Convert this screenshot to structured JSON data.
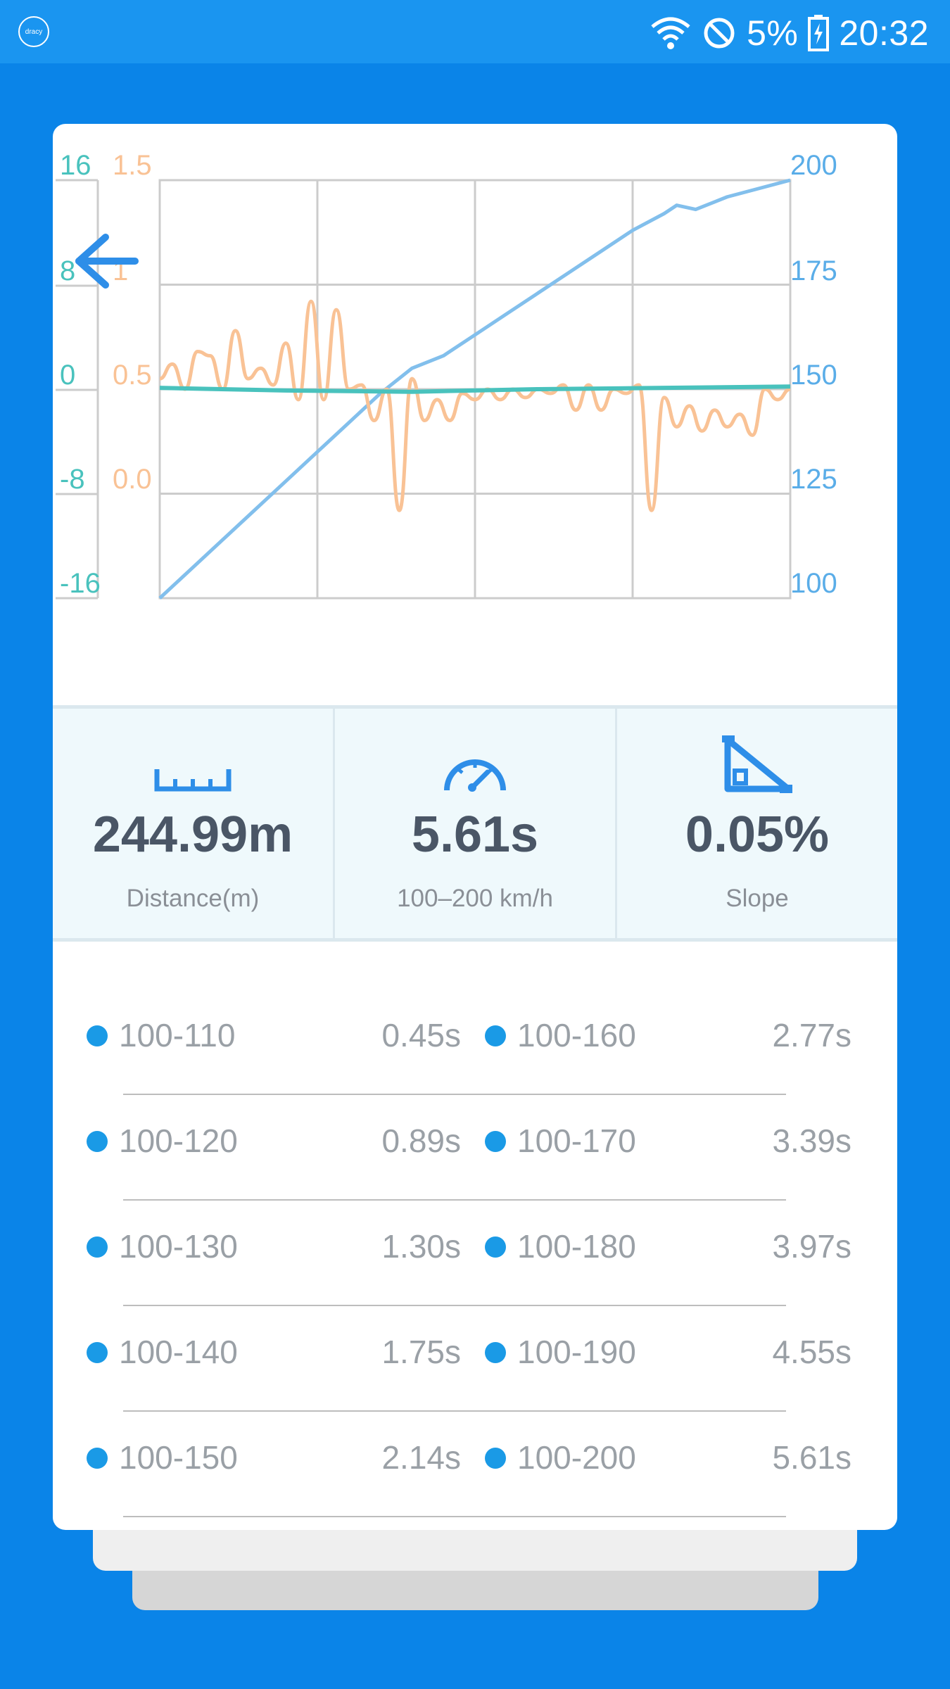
{
  "status_bar": {
    "logo_text": "dracy",
    "battery": "5%",
    "time": "20:32",
    "icons": [
      "wifi-icon",
      "do-not-disturb-icon",
      "battery-icon"
    ]
  },
  "chart": {
    "left_axis_slope_ticks": [
      "16",
      "8",
      "0",
      "-8",
      "-16"
    ],
    "left_axis_accel_ticks": [
      "1.5",
      "1",
      "0.5",
      "0.0"
    ],
    "right_axis_speed_ticks": [
      "200",
      "175",
      "150",
      "125",
      "100"
    ],
    "colors": {
      "speed": "#82bfec",
      "accel": "#f9c295",
      "slope": "#49c2bd",
      "grid": "#cccccc"
    }
  },
  "chart_data": {
    "type": "line",
    "series": [
      {
        "axis": "right",
        "color": "#82bfec",
        "x": [
          0.0,
          0.05,
          0.1,
          0.15,
          0.2,
          0.25,
          0.3,
          0.35,
          0.4,
          0.45,
          0.5,
          0.55,
          0.6,
          0.65,
          0.7,
          0.75,
          0.8,
          0.82,
          0.85,
          0.9,
          0.95,
          1.0
        ],
        "values": [
          100,
          107,
          114,
          121,
          128,
          135,
          142,
          149,
          155,
          158,
          163,
          168,
          173,
          178,
          183,
          188,
          192,
          194,
          193,
          196,
          198,
          200
        ]
      },
      {
        "axis": "accel",
        "color": "#f9c295",
        "x": [
          0.0,
          0.02,
          0.04,
          0.06,
          0.08,
          0.1,
          0.12,
          0.14,
          0.16,
          0.18,
          0.2,
          0.22,
          0.24,
          0.26,
          0.28,
          0.3,
          0.32,
          0.34,
          0.36,
          0.38,
          0.4,
          0.42,
          0.44,
          0.46,
          0.48,
          0.5,
          0.52,
          0.54,
          0.56,
          0.58,
          0.6,
          0.62,
          0.64,
          0.66,
          0.68,
          0.7,
          0.72,
          0.74,
          0.76,
          0.78,
          0.8,
          0.82,
          0.84,
          0.86,
          0.88,
          0.9,
          0.92,
          0.94,
          0.96,
          0.98,
          1.0
        ],
        "values": [
          0.55,
          0.62,
          0.5,
          0.68,
          0.66,
          0.5,
          0.78,
          0.55,
          0.6,
          0.52,
          0.72,
          0.45,
          0.92,
          0.45,
          0.88,
          0.5,
          0.52,
          0.35,
          0.5,
          -0.08,
          0.55,
          0.35,
          0.45,
          0.35,
          0.48,
          0.45,
          0.5,
          0.45,
          0.5,
          0.46,
          0.5,
          0.48,
          0.52,
          0.4,
          0.52,
          0.4,
          0.5,
          0.48,
          0.52,
          -0.08,
          0.46,
          0.32,
          0.42,
          0.3,
          0.4,
          0.32,
          0.38,
          0.28,
          0.5,
          0.45,
          0.5
        ]
      },
      {
        "axis": "left",
        "color": "#49c2bd",
        "x": [
          0.0,
          0.2,
          0.4,
          0.6,
          0.8,
          1.0
        ],
        "values": [
          0.1,
          -0.1,
          -0.2,
          0.0,
          0.1,
          0.2
        ]
      }
    ],
    "xlim": [
      0,
      1
    ],
    "ylim_right": [
      100,
      200
    ],
    "ylim_left": [
      -16,
      16
    ],
    "ylim_accel": [
      -0.5,
      1.5
    ],
    "grid": true
  },
  "stats": [
    {
      "icon": "ruler-icon",
      "value": "244.99m",
      "label": "Distance(m)"
    },
    {
      "icon": "speedometer-icon",
      "value": "5.61s",
      "label": "100–200 km/h"
    },
    {
      "icon": "slope-icon",
      "value": "0.05%",
      "label": "Slope"
    }
  ],
  "splits": [
    {
      "left_range": "100-110",
      "left_time": "0.45s",
      "right_range": "100-160",
      "right_time": "2.77s"
    },
    {
      "left_range": "100-120",
      "left_time": "0.89s",
      "right_range": "100-170",
      "right_time": "3.39s"
    },
    {
      "left_range": "100-130",
      "left_time": "1.30s",
      "right_range": "100-180",
      "right_time": "3.97s"
    },
    {
      "left_range": "100-140",
      "left_time": "1.75s",
      "right_range": "100-190",
      "right_time": "4.55s"
    },
    {
      "left_range": "100-150",
      "left_time": "2.14s",
      "right_range": "100-200",
      "right_time": "5.61s"
    }
  ]
}
